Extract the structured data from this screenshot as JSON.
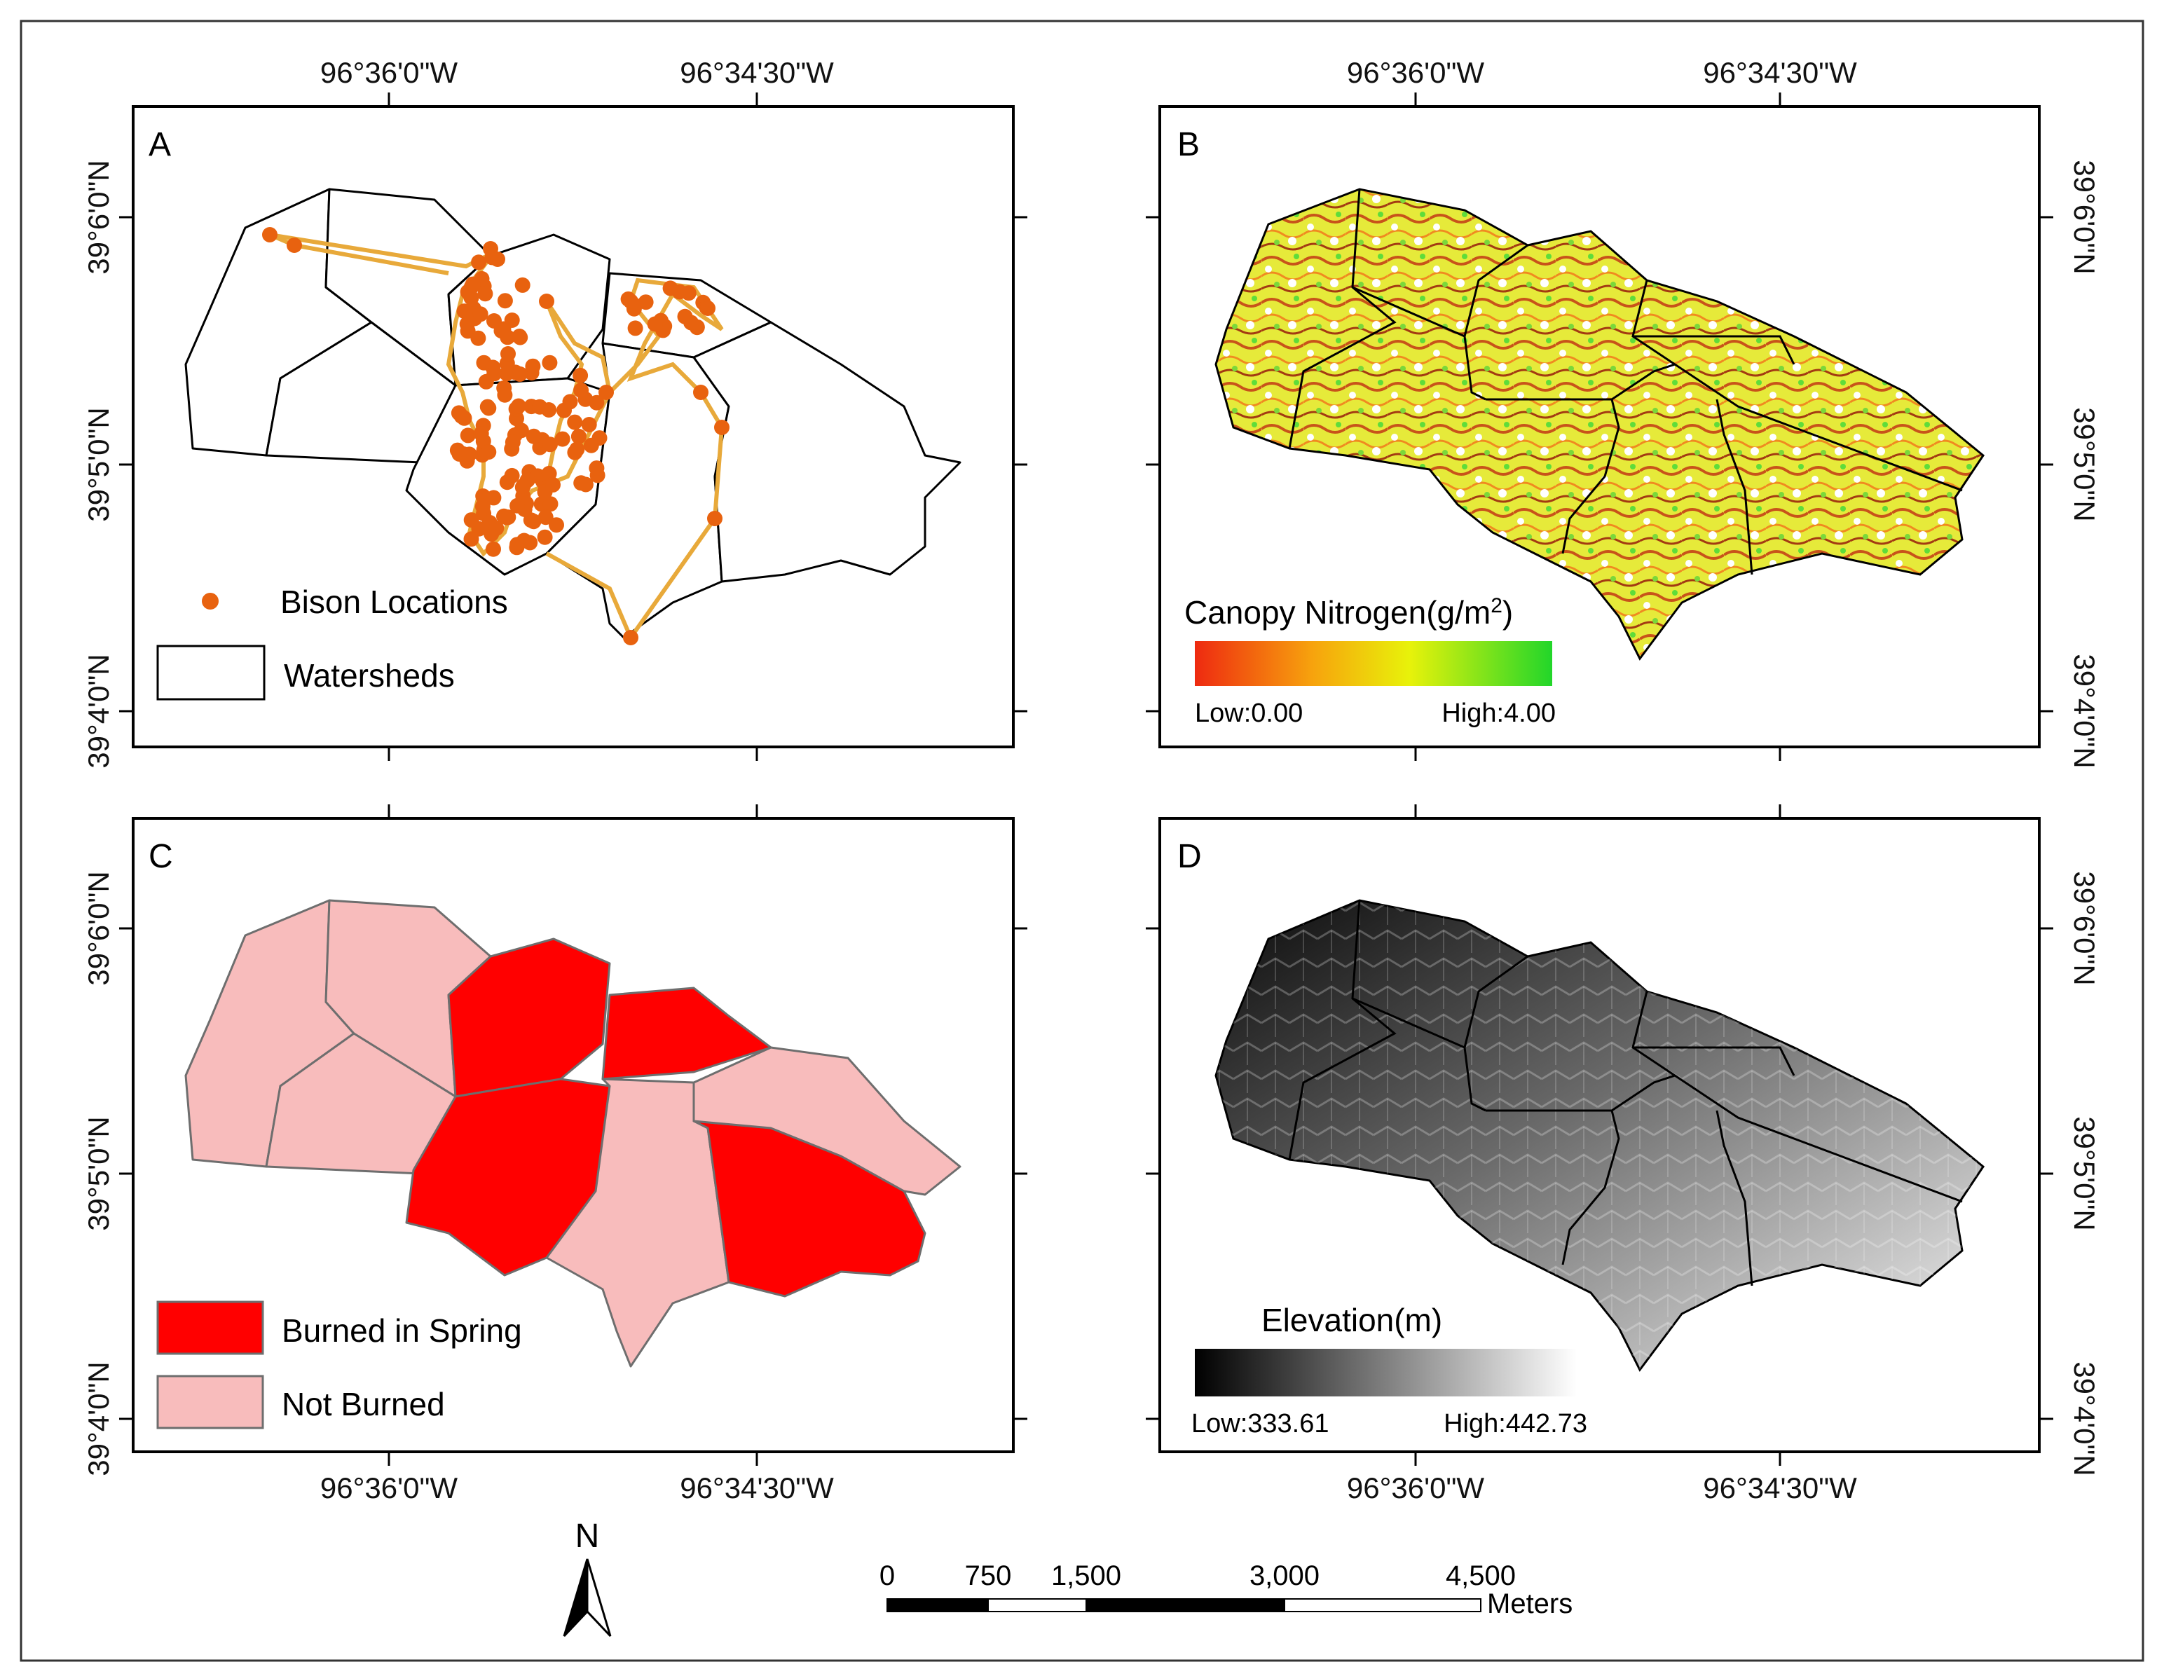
{
  "coords": {
    "lon_west": "96°36'0\"W",
    "lon_east": "96°34'30\"W",
    "lat_top": "39°6'0\"N",
    "lat_mid": "39°5'0\"N",
    "lat_bottom": "39°4'0\"N"
  },
  "panels": {
    "a": {
      "label": "A",
      "legend": {
        "points": "Bison Locations",
        "polygons": "Watersheds"
      },
      "colors": {
        "points": "#e8620f",
        "track": "#e8a93a",
        "outline": "#000000"
      }
    },
    "b": {
      "label": "B",
      "legend_title_main": "Canopy Nitrogen(g/m",
      "legend_title_sup": "2",
      "legend_title_end": ")",
      "low": "Low:0.00",
      "high": "High:4.00",
      "colors": {
        "ramp": [
          "#ee2a10",
          "#f7a30d",
          "#e8f20a",
          "#22d62a"
        ]
      }
    },
    "c": {
      "label": "C",
      "legend": {
        "burned": "Burned in Spring",
        "not_burned": "Not Burned"
      },
      "colors": {
        "burned": "#ff0000",
        "not_burned": "#f8bcbc",
        "edge": "#6e6e6e"
      }
    },
    "d": {
      "label": "D",
      "legend_title": "Elevation(m)",
      "low": "Low:333.61",
      "high": "High:442.73",
      "colors": {
        "ramp": [
          "#000000",
          "#ffffff"
        ]
      }
    }
  },
  "north_arrow": {
    "label": "N"
  },
  "scalebar": {
    "ticks": [
      "0",
      "750",
      "1,500",
      "3,000",
      "4,500"
    ],
    "unit": "Meters"
  }
}
